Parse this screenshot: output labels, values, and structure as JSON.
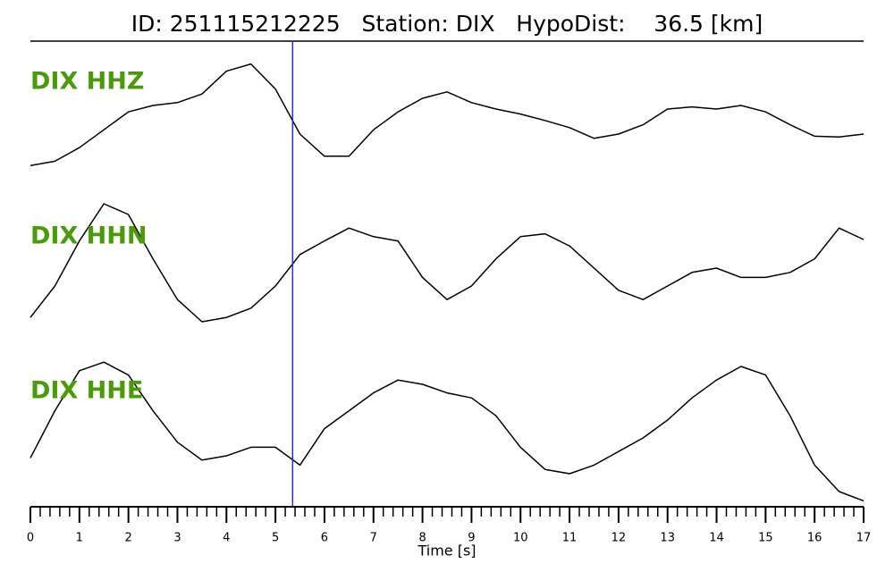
{
  "chart_data": {
    "type": "line",
    "title": "ID: 251115212225   Station: DIX   HypoDist:    36.5 [km]",
    "xlabel": "Time [s]",
    "xlim": [
      0,
      17
    ],
    "xticks": [
      0,
      1,
      2,
      3,
      4,
      5,
      6,
      7,
      8,
      9,
      10,
      11,
      12,
      13,
      14,
      15,
      16,
      17
    ],
    "xminorticks": [
      0.2,
      0.4,
      0.6,
      0.8,
      1.2,
      1.4,
      1.6,
      1.8,
      2.2,
      2.4,
      2.6,
      2.8,
      3.2,
      3.4,
      3.6,
      3.8,
      4.2,
      4.4,
      4.6,
      4.8,
      5.2,
      5.4,
      5.6,
      5.8,
      6.2,
      6.4,
      6.6,
      6.8,
      7.2,
      7.4,
      7.6,
      7.8,
      8.2,
      8.4,
      8.6,
      8.8,
      9.2,
      9.4,
      9.6,
      9.8,
      10.2,
      10.4,
      10.6,
      10.8,
      11.2,
      11.4,
      11.6,
      11.8,
      12.2,
      12.4,
      12.6,
      12.8,
      13.2,
      13.4,
      13.6,
      13.8,
      14.2,
      14.4,
      14.6,
      14.8,
      15.2,
      15.4,
      15.6,
      15.8,
      16.2,
      16.4,
      16.6,
      16.8
    ],
    "pick_time": 5.35,
    "pick_color": "#2a2adc",
    "label_color": "#4a9a0a",
    "x": [
      0,
      0.5,
      1,
      1.5,
      2,
      2.5,
      3,
      3.5,
      4,
      4.5,
      5,
      5.5,
      6,
      6.5,
      7,
      7.5,
      8,
      8.5,
      9,
      9.5,
      10,
      10.5,
      11,
      11.5,
      12,
      12.5,
      13,
      13.5,
      14,
      14.5,
      15,
      15.5,
      16,
      16.5,
      17
    ],
    "series": [
      {
        "name": "DIX HHZ",
        "color": "#000000",
        "ylim": [
          -1,
          1
        ],
        "values": [
          -0.54,
          -0.48,
          -0.29,
          -0.04,
          0.21,
          0.3,
          0.34,
          0.46,
          0.78,
          0.88,
          0.53,
          -0.1,
          -0.41,
          -0.41,
          -0.04,
          0.21,
          0.4,
          0.49,
          0.34,
          0.25,
          0.18,
          0.09,
          -0.01,
          -0.16,
          -0.1,
          0.03,
          0.25,
          0.28,
          0.25,
          0.3,
          0.21,
          0.03,
          -0.13,
          -0.14,
          -0.1
        ]
      },
      {
        "name": "DIX HHN",
        "color": "#000000",
        "ylim": [
          -1,
          1
        ],
        "values": [
          -0.79,
          -0.35,
          0.28,
          0.8,
          0.65,
          0.03,
          -0.54,
          -0.85,
          -0.79,
          -0.66,
          -0.35,
          0.09,
          0.28,
          0.46,
          0.34,
          0.28,
          -0.23,
          -0.54,
          -0.35,
          0.03,
          0.34,
          0.38,
          0.21,
          -0.1,
          -0.41,
          -0.54,
          -0.35,
          -0.16,
          -0.1,
          -0.23,
          -0.23,
          -0.16,
          0.03,
          0.46,
          0.3
        ]
      },
      {
        "name": "DIX HHE",
        "color": "#000000",
        "ylim": [
          -1,
          1
        ],
        "values": [
          -0.38,
          0.28,
          0.84,
          0.96,
          0.78,
          0.28,
          -0.16,
          -0.41,
          -0.35,
          -0.23,
          -0.23,
          -0.48,
          0.03,
          0.28,
          0.53,
          0.71,
          0.65,
          0.53,
          0.46,
          0.21,
          -0.23,
          -0.54,
          -0.6,
          -0.48,
          -0.29,
          -0.1,
          0.15,
          0.46,
          0.71,
          0.9,
          0.78,
          0.21,
          -0.48,
          -0.85,
          -0.98
        ]
      }
    ]
  }
}
